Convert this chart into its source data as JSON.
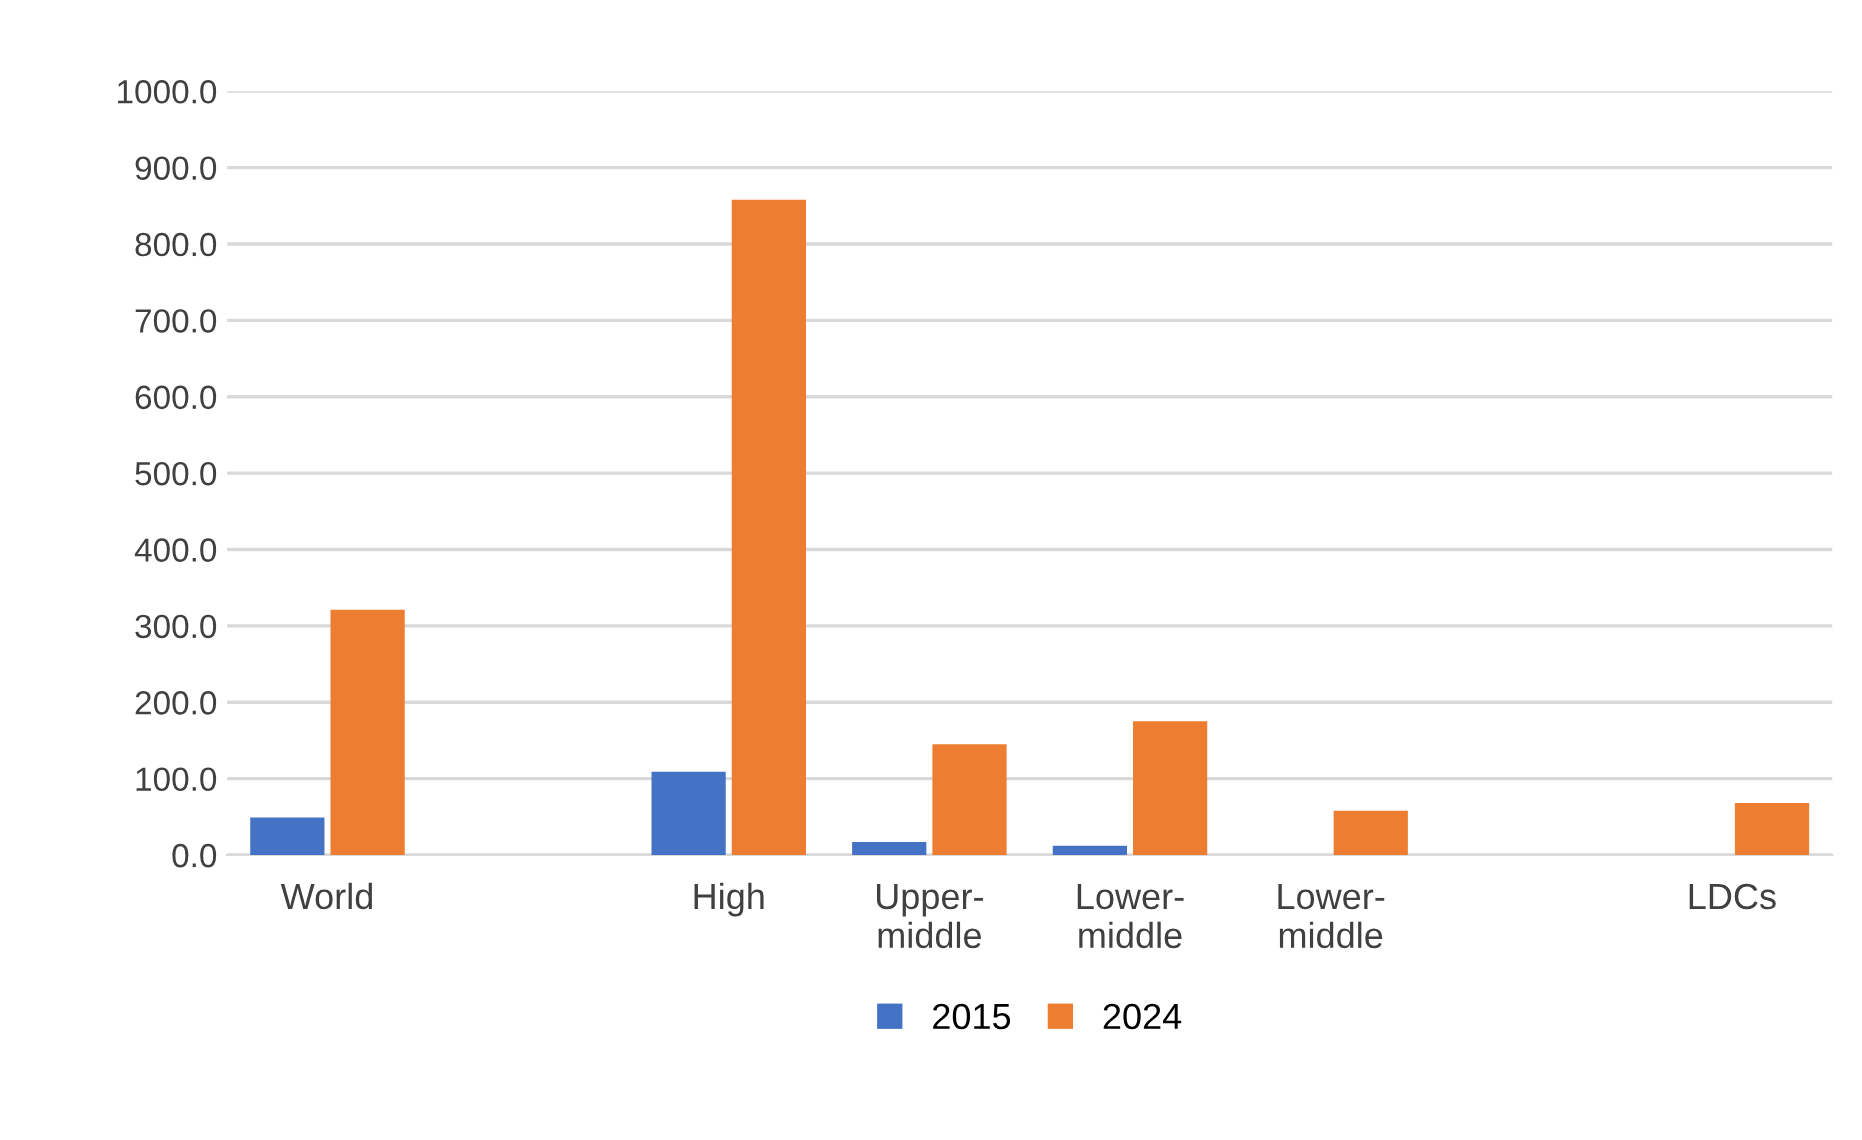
{
  "chart_data": {
    "type": "bar",
    "categories": [
      "World",
      null,
      "High",
      "Upper-\nmiddle",
      "Lower-\nmiddle",
      "Lower-\nmiddle",
      null,
      "LDCs"
    ],
    "series": [
      {
        "name": "2015",
        "color": "#4472c4",
        "values": [
          49,
          null,
          109,
          17,
          12,
          null,
          null,
          null
        ]
      },
      {
        "name": "2024",
        "color": "#ed7d31",
        "values": [
          321,
          null,
          858,
          145,
          175,
          58,
          null,
          68
        ]
      }
    ],
    "ylim": [
      0,
      1000
    ],
    "yticks": [
      {
        "value": 0,
        "label": "0.0"
      },
      {
        "value": 100,
        "label": "100.0"
      },
      {
        "value": 200,
        "label": "200.0"
      },
      {
        "value": 300,
        "label": "300.0"
      },
      {
        "value": 400,
        "label": "400.0"
      },
      {
        "value": 500,
        "label": "500.0"
      },
      {
        "value": 600,
        "label": "600.0"
      },
      {
        "value": 700,
        "label": "700.0"
      },
      {
        "value": 800,
        "label": "800.0"
      },
      {
        "value": 900,
        "label": "900.0"
      },
      {
        "value": 1000,
        "label": "1000.0"
      }
    ],
    "grid": "y",
    "legend": "bottom"
  }
}
